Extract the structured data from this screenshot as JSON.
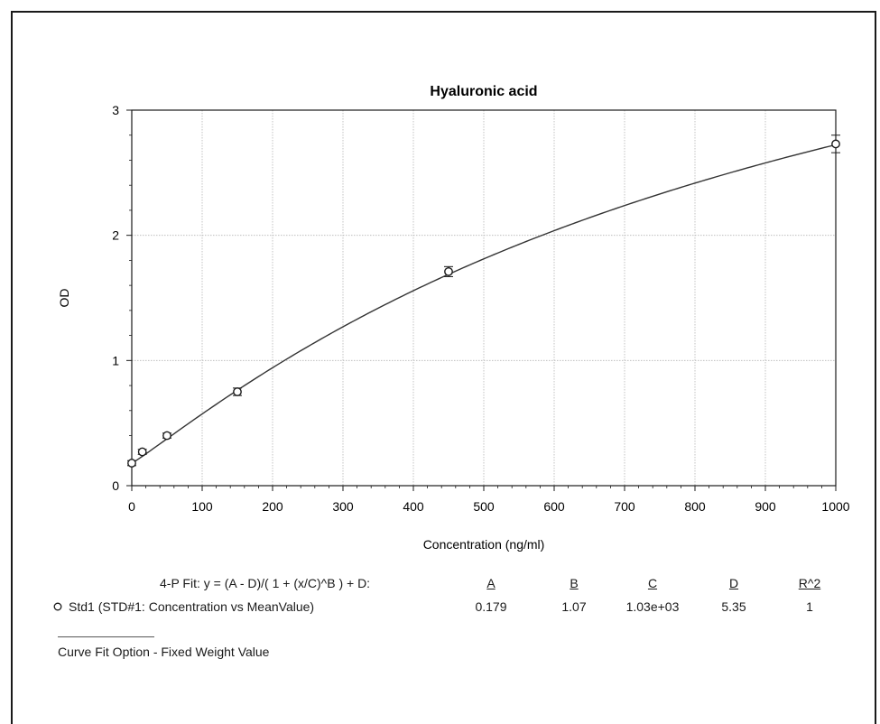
{
  "chart_data": {
    "type": "scatter",
    "title": "Hyaluronic acid",
    "xlabel": "Concentration (ng/ml)",
    "ylabel": "OD",
    "xlim": [
      0,
      1000
    ],
    "ylim": [
      0,
      3
    ],
    "x_ticks": [
      "0",
      "100",
      "200",
      "300",
      "400",
      "500",
      "600",
      "700",
      "800",
      "900",
      "1000"
    ],
    "y_ticks": [
      "0",
      "1",
      "2",
      "3"
    ],
    "grid": true,
    "series": [
      {
        "name": "Std1 (STD#1: Concentration vs MeanValue)",
        "points": [
          {
            "x": 0,
            "y": 0.18,
            "err": 0.02
          },
          {
            "x": 15,
            "y": 0.27,
            "err": 0.02
          },
          {
            "x": 50,
            "y": 0.4,
            "err": 0.02
          },
          {
            "x": 150,
            "y": 0.75,
            "err": 0.03
          },
          {
            "x": 450,
            "y": 1.71,
            "err": 0.04
          },
          {
            "x": 1000,
            "y": 2.73,
            "err": 0.07
          }
        ]
      }
    ],
    "fit": {
      "label": "4-P Fit:  y = (A - D)/( 1 + (x/C)^B ) + D:",
      "headers": [
        "A",
        "B",
        "C",
        "D",
        "R^2"
      ],
      "values": [
        "0.179",
        "1.07",
        "1.03e+03",
        "5.35",
        "1"
      ],
      "params": {
        "A": 0.179,
        "B": 1.07,
        "C": 1030,
        "D": 5.35
      }
    },
    "footer": "Curve Fit Option - Fixed Weight Value"
  }
}
